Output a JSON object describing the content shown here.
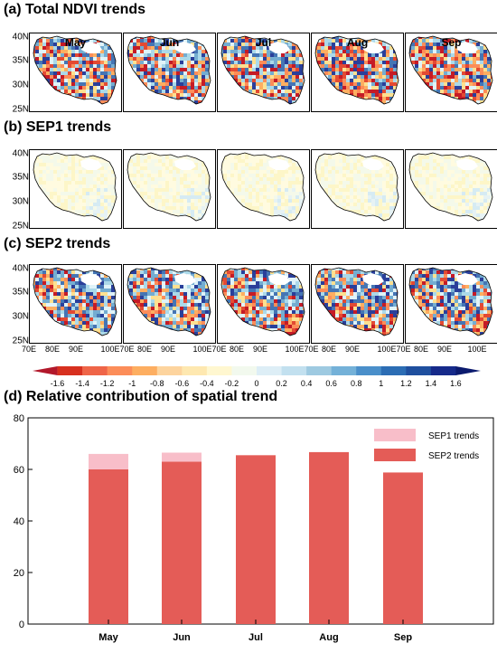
{
  "panels": {
    "a": {
      "title": "(a) Total NDVI trends"
    },
    "b": {
      "title": "(b) SEP1 trends"
    },
    "c": {
      "title": "(c) SEP2 trends"
    },
    "d": {
      "title": "(d) Relative contribution of spatial trend"
    }
  },
  "months": [
    "May",
    "Jun",
    "Jul",
    "Aug",
    "Sep"
  ],
  "lat_labels": [
    "40N",
    "35N",
    "30N",
    "25N"
  ],
  "lon_labels": [
    "70E",
    "80E",
    "90E",
    "100E70E",
    "80E",
    "90E",
    "100E70E",
    "80E",
    "90E",
    "100E70E",
    "80E",
    "90E",
    "100E70E",
    "80E",
    "90E",
    "100E"
  ],
  "colorbar": {
    "ticks": [
      "-1.6",
      "-1.4",
      "-1.2",
      "-1",
      "-0.8",
      "-0.6",
      "-0.4",
      "-0.2",
      "0",
      "0.2",
      "0.4",
      "0.6",
      "0.8",
      "1",
      "1.2",
      "1.4",
      "1.6"
    ],
    "colors": [
      "#b2182b",
      "#d7301f",
      "#ef6548",
      "#fc8d59",
      "#fdae61",
      "#fdd49e",
      "#fee8b0",
      "#fff7d0",
      "#f2f9ee",
      "#ddeef6",
      "#c2e0ef",
      "#9ecae1",
      "#74b1d8",
      "#4a8fca",
      "#2c6db4",
      "#1f4f9e",
      "#162a8a",
      "#0b1a6e"
    ]
  },
  "chart_data": {
    "type": "bar",
    "stacked": true,
    "categories": [
      "May",
      "Jun",
      "Jul",
      "Aug",
      "Sep"
    ],
    "series": [
      {
        "name": "SEP2 trends",
        "values": [
          60,
          63,
          65.5,
          66.7,
          58.8
        ],
        "color": "#e45c57"
      },
      {
        "name": "SEP1 trends",
        "values": [
          6,
          3.5,
          0,
          0,
          0
        ],
        "color": "#f8bec9"
      }
    ],
    "ylim": [
      0,
      80
    ],
    "yticks": [
      0,
      20,
      40,
      60,
      80
    ],
    "legend_position": "top-right"
  }
}
